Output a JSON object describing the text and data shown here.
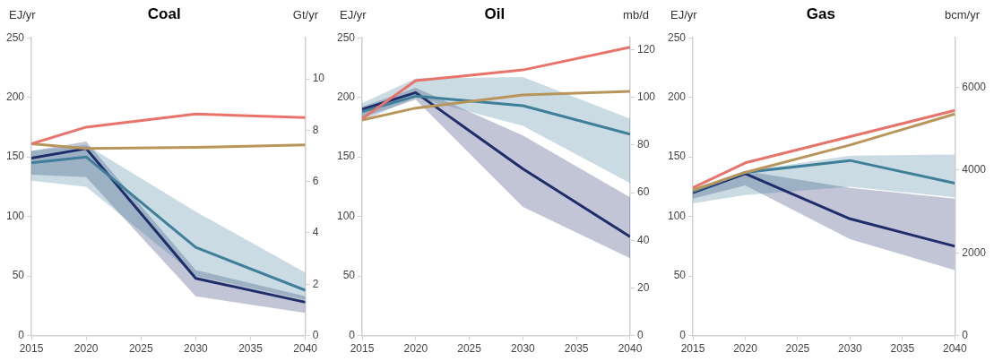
{
  "chart_data": [
    {
      "type": "line",
      "title": "Coal",
      "ylabel": "EJ/yr",
      "y2label": "Gt/yr",
      "x": [
        2015,
        2020,
        2030,
        2040
      ],
      "xlim": [
        2015,
        2040
      ],
      "xticks": [
        2015,
        2020,
        2025,
        2030,
        2035,
        2040
      ],
      "ylim": [
        0,
        250
      ],
      "yticks": [
        0,
        50,
        100,
        150,
        200,
        250
      ],
      "y2lim": [
        0,
        11.6
      ],
      "y2ticks": [
        0,
        2,
        4,
        6,
        8,
        10
      ],
      "legend": false,
      "series": [
        {
          "color": "#e8736a",
          "values": [
            161,
            175,
            186,
            183
          ]
        },
        {
          "color": "#b8955a",
          "values": [
            161,
            157,
            158,
            160
          ]
        },
        {
          "color": "#3f7f9a",
          "values": [
            145,
            150,
            74,
            38
          ],
          "lower": [
            130,
            125,
            50,
            30
          ],
          "upper": [
            155,
            160,
            104,
            53
          ]
        },
        {
          "color": "#1f2d6b",
          "values": [
            149,
            157,
            48,
            28
          ],
          "lower": [
            135,
            133,
            33,
            19
          ],
          "upper": [
            155,
            163,
            55,
            33
          ]
        }
      ]
    },
    {
      "type": "line",
      "title": "Oil",
      "ylabel": "EJ/yr",
      "y2label": "mb/d",
      "x": [
        2015,
        2020,
        2030,
        2040
      ],
      "xlim": [
        2015,
        2040
      ],
      "xticks": [
        2015,
        2020,
        2025,
        2030,
        2035,
        2040
      ],
      "ylim": [
        0,
        250
      ],
      "yticks": [
        0,
        50,
        100,
        150,
        200,
        250
      ],
      "y2lim": [
        0,
        125
      ],
      "y2ticks": [
        0,
        20,
        40,
        60,
        80,
        100,
        120
      ],
      "legend": false,
      "series": [
        {
          "color": "#e8736a",
          "values": [
            182,
            214,
            223,
            242
          ]
        },
        {
          "color": "#b8955a",
          "values": [
            181,
            191,
            202,
            205
          ]
        },
        {
          "color": "#3f7f9a",
          "values": [
            188,
            201,
            193,
            169
          ],
          "lower": [
            180,
            200,
            176,
            128
          ],
          "upper": [
            195,
            216,
            217,
            182
          ]
        },
        {
          "color": "#1f2d6b",
          "values": [
            190,
            204,
            140,
            83
          ],
          "lower": [
            183,
            198,
            108,
            65
          ],
          "upper": [
            192,
            208,
            168,
            116
          ]
        }
      ]
    },
    {
      "type": "line",
      "title": "Gas",
      "ylabel": "EJ/yr",
      "y2label": "bcm/yr",
      "x": [
        2015,
        2020,
        2030,
        2040
      ],
      "xlim": [
        2015,
        2040
      ],
      "xticks": [
        2015,
        2020,
        2025,
        2030,
        2035,
        2040
      ],
      "ylim": [
        0,
        250
      ],
      "yticks": [
        0,
        50,
        100,
        150,
        200,
        250
      ],
      "y2lim": [
        0,
        7200
      ],
      "y2ticks": [
        0,
        2000,
        4000,
        6000
      ],
      "legend": false,
      "series": [
        {
          "color": "#e8736a",
          "values": [
            124,
            145,
            167,
            189
          ]
        },
        {
          "color": "#b8955a",
          "values": [
            122,
            137,
            160,
            186
          ]
        },
        {
          "color": "#3f7f9a",
          "values": [
            121,
            137,
            147,
            128
          ],
          "lower": [
            111,
            118,
            125,
            116
          ],
          "upper": [
            123,
            138,
            151,
            152
          ]
        },
        {
          "color": "#1f2d6b",
          "values": [
            120,
            136,
            98,
            75
          ],
          "lower": [
            115,
            126,
            81,
            55
          ],
          "upper": [
            123,
            138,
            124,
            115
          ]
        }
      ]
    }
  ]
}
